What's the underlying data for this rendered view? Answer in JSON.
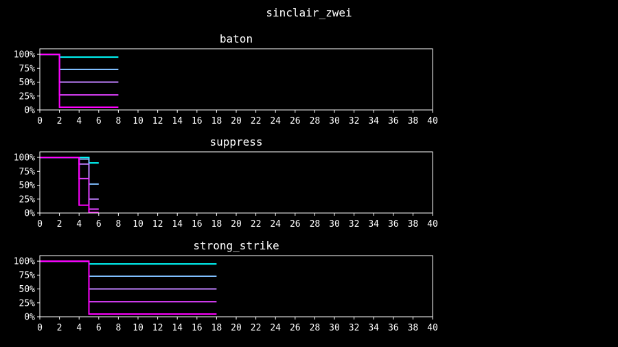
{
  "suptitle": "sinclair_zwei",
  "chart_data": [
    {
      "type": "line",
      "step": true,
      "title": "baton",
      "xlim": [
        0,
        40
      ],
      "ylim": [
        0,
        1.1
      ],
      "xticks": [
        0,
        2,
        4,
        6,
        8,
        10,
        12,
        14,
        16,
        18,
        20,
        22,
        24,
        26,
        28,
        30,
        32,
        34,
        36,
        38,
        40
      ],
      "yticks": [
        0,
        0.25,
        0.5,
        0.75,
        1.0
      ],
      "ytick_labels": [
        "0%",
        "25%",
        "50%",
        "75%",
        "100%"
      ],
      "series": [
        {
          "color": "#00ffff",
          "x": [
            0,
            2,
            2,
            8
          ],
          "y": [
            1.0,
            1.0,
            0.95,
            0.95
          ]
        },
        {
          "color": "#80bfff",
          "x": [
            0,
            2,
            2,
            8
          ],
          "y": [
            1.0,
            1.0,
            0.73,
            0.73
          ]
        },
        {
          "color": "#c080ff",
          "x": [
            0,
            2,
            2,
            8
          ],
          "y": [
            1.0,
            1.0,
            0.5,
            0.5
          ]
        },
        {
          "color": "#e040ff",
          "x": [
            0,
            2,
            2,
            8
          ],
          "y": [
            1.0,
            1.0,
            0.27,
            0.27
          ]
        },
        {
          "color": "#ff00ff",
          "x": [
            0,
            2,
            2,
            8
          ],
          "y": [
            1.0,
            1.0,
            0.05,
            0.05
          ]
        }
      ]
    },
    {
      "type": "line",
      "step": true,
      "title": "suppress",
      "xlim": [
        0,
        40
      ],
      "ylim": [
        0,
        1.1
      ],
      "xticks": [
        0,
        2,
        4,
        6,
        8,
        10,
        12,
        14,
        16,
        18,
        20,
        22,
        24,
        26,
        28,
        30,
        32,
        34,
        36,
        38,
        40
      ],
      "yticks": [
        0,
        0.25,
        0.5,
        0.75,
        1.0
      ],
      "ytick_labels": [
        "0%",
        "25%",
        "50%",
        "75%",
        "100%"
      ],
      "series": [
        {
          "color": "#00ffff",
          "x": [
            0,
            4,
            4,
            5,
            5,
            6
          ],
          "y": [
            1.0,
            1.0,
            1.0,
            1.0,
            0.9,
            0.9
          ]
        },
        {
          "color": "#80bfff",
          "x": [
            0,
            4,
            4,
            5,
            5,
            6
          ],
          "y": [
            1.0,
            1.0,
            0.97,
            0.97,
            0.52,
            0.52
          ]
        },
        {
          "color": "#c080ff",
          "x": [
            0,
            4,
            4,
            5,
            5,
            6
          ],
          "y": [
            1.0,
            1.0,
            0.88,
            0.88,
            0.25,
            0.25
          ]
        },
        {
          "color": "#e040ff",
          "x": [
            0,
            4,
            4,
            5,
            5,
            6
          ],
          "y": [
            1.0,
            1.0,
            0.62,
            0.62,
            0.07,
            0.07
          ]
        },
        {
          "color": "#ff00ff",
          "x": [
            0,
            4,
            4,
            5,
            5,
            6
          ],
          "y": [
            1.0,
            1.0,
            0.14,
            0.14,
            0.01,
            0.01
          ]
        }
      ]
    },
    {
      "type": "line",
      "step": true,
      "title": "strong_strike",
      "xlim": [
        0,
        40
      ],
      "ylim": [
        0,
        1.1
      ],
      "xticks": [
        0,
        2,
        4,
        6,
        8,
        10,
        12,
        14,
        16,
        18,
        20,
        22,
        24,
        26,
        28,
        30,
        32,
        34,
        36,
        38,
        40
      ],
      "yticks": [
        0,
        0.25,
        0.5,
        0.75,
        1.0
      ],
      "ytick_labels": [
        "0%",
        "25%",
        "50%",
        "75%",
        "100%"
      ],
      "series": [
        {
          "color": "#00ffff",
          "x": [
            0,
            5,
            5,
            18
          ],
          "y": [
            1.0,
            1.0,
            0.95,
            0.95
          ]
        },
        {
          "color": "#80bfff",
          "x": [
            0,
            5,
            5,
            18
          ],
          "y": [
            1.0,
            1.0,
            0.73,
            0.73
          ]
        },
        {
          "color": "#c080ff",
          "x": [
            0,
            5,
            5,
            18
          ],
          "y": [
            1.0,
            1.0,
            0.5,
            0.5
          ]
        },
        {
          "color": "#e040ff",
          "x": [
            0,
            5,
            5,
            18
          ],
          "y": [
            1.0,
            1.0,
            0.27,
            0.27
          ]
        },
        {
          "color": "#ff00ff",
          "x": [
            0,
            5,
            5,
            18
          ],
          "y": [
            1.0,
            1.0,
            0.05,
            0.05
          ]
        }
      ]
    }
  ]
}
